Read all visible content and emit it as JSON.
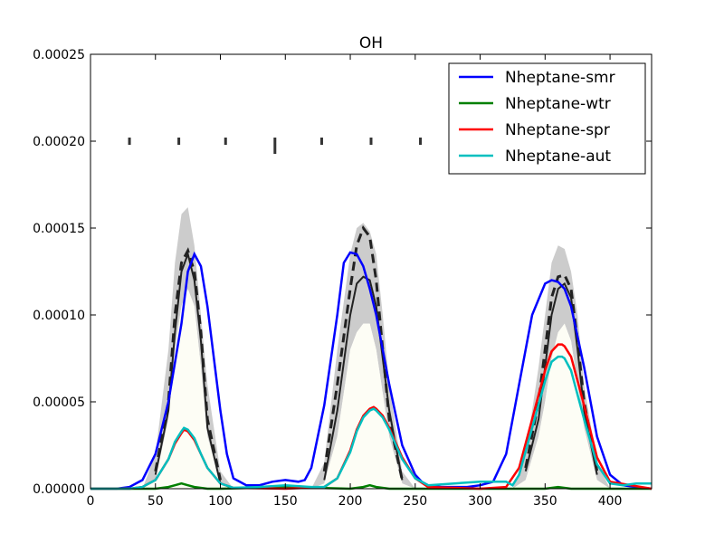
{
  "chart_data": {
    "type": "line",
    "title": "OH",
    "xlabel": "",
    "ylabel": "",
    "xlim": [
      0,
      432
    ],
    "ylim": [
      0,
      0.00025
    ],
    "x_ticks": [
      0,
      50,
      100,
      150,
      200,
      250,
      300,
      350,
      400
    ],
    "x_tick_labels": [
      "0",
      "50",
      "100",
      "150",
      "200",
      "250",
      "300",
      "350",
      "400"
    ],
    "y_ticks": [
      0,
      5e-05,
      0.0001,
      0.00015,
      0.0002,
      0.00025
    ],
    "y_tick_labels": [
      "0.00000",
      "0.00005",
      "0.00010",
      "0.00015",
      "0.00020",
      "0.00025"
    ],
    "grid": false,
    "legend_position": "top-right",
    "series": [
      {
        "name": "Nheptane-smr",
        "color": "#0000ff",
        "x": [
          0,
          20,
          30,
          40,
          50,
          60,
          70,
          75,
          80,
          85,
          90,
          100,
          105,
          110,
          120,
          130,
          140,
          150,
          160,
          165,
          170,
          180,
          190,
          195,
          200,
          205,
          210,
          215,
          220,
          230,
          240,
          250,
          255,
          260,
          270,
          280,
          290,
          300,
          310,
          320,
          330,
          340,
          350,
          355,
          360,
          365,
          370,
          380,
          390,
          400,
          410,
          420,
          432
        ],
        "y": [
          0,
          0,
          1e-06,
          5e-06,
          2e-05,
          5e-05,
          9.5e-05,
          0.000125,
          0.000135,
          0.000128,
          0.000105,
          4.5e-05,
          2e-05,
          6e-06,
          2e-06,
          2e-06,
          4e-06,
          5e-06,
          4e-06,
          5e-06,
          1.2e-05,
          4.8e-05,
          0.0001,
          0.00013,
          0.000136,
          0.000135,
          0.000128,
          0.000115,
          0.0001,
          6e-05,
          2.5e-05,
          8e-06,
          4e-06,
          2e-06,
          1e-06,
          1e-06,
          1e-06,
          2e-06,
          4e-06,
          2e-05,
          6e-05,
          0.0001,
          0.000118,
          0.00012,
          0.000119,
          0.000115,
          0.000105,
          7e-05,
          3e-05,
          8e-06,
          2e-06,
          1e-06,
          0
        ]
      },
      {
        "name": "Nheptane-wtr",
        "color": "#008000",
        "x": [
          0,
          50,
          60,
          65,
          70,
          75,
          80,
          90,
          100,
          150,
          200,
          210,
          215,
          220,
          230,
          240,
          300,
          350,
          360,
          370,
          380,
          432
        ],
        "y": [
          0,
          0,
          1e-06,
          2e-06,
          3e-06,
          2e-06,
          1e-06,
          0,
          0,
          1e-06,
          0,
          1e-06,
          2e-06,
          1e-06,
          0,
          0,
          0,
          0,
          1e-06,
          0,
          0,
          0
        ]
      },
      {
        "name": "Nheptane-spr",
        "color": "#ff0000",
        "x": [
          0,
          30,
          40,
          50,
          60,
          65,
          70,
          72,
          75,
          80,
          85,
          90,
          100,
          110,
          150,
          180,
          190,
          200,
          205,
          210,
          215,
          218,
          220,
          225,
          230,
          240,
          250,
          260,
          300,
          320,
          330,
          340,
          350,
          355,
          360,
          363,
          365,
          370,
          380,
          390,
          400,
          432
        ],
        "y": [
          0,
          0,
          1e-06,
          5e-06,
          1.7e-05,
          2.6e-05,
          3.2e-05,
          3.4e-05,
          3.3e-05,
          2.8e-05,
          2e-05,
          1.2e-05,
          3e-06,
          5e-07,
          0,
          1e-06,
          6e-06,
          2.2e-05,
          3.4e-05,
          4.2e-05,
          4.6e-05,
          4.7e-05,
          4.6e-05,
          4.2e-05,
          3.5e-05,
          1.8e-05,
          6e-06,
          1e-06,
          0,
          1e-06,
          1.2e-05,
          4e-05,
          6.8e-05,
          7.9e-05,
          8.3e-05,
          8.3e-05,
          8.2e-05,
          7.6e-05,
          4.8e-05,
          1.8e-05,
          4e-06,
          0
        ]
      },
      {
        "name": "Nheptane-aut",
        "color": "#00bfbf",
        "x": [
          0,
          30,
          40,
          50,
          60,
          65,
          70,
          72,
          75,
          80,
          85,
          90,
          100,
          110,
          130,
          150,
          170,
          180,
          190,
          200,
          205,
          210,
          215,
          218,
          220,
          225,
          230,
          240,
          250,
          260,
          280,
          300,
          320,
          325,
          330,
          340,
          350,
          355,
          360,
          363,
          365,
          370,
          380,
          390,
          400,
          410,
          420,
          432
        ],
        "y": [
          0,
          0,
          1e-06,
          5e-06,
          1.7e-05,
          2.7e-05,
          3.3e-05,
          3.5e-05,
          3.4e-05,
          2.9e-05,
          2e-05,
          1.2e-05,
          3e-06,
          5e-07,
          1e-06,
          2e-06,
          1e-06,
          1e-06,
          6e-06,
          2.1e-05,
          3.3e-05,
          4.1e-05,
          4.5e-05,
          4.6e-05,
          4.5e-05,
          4.1e-05,
          3.4e-05,
          1.7e-05,
          6e-06,
          2e-06,
          3e-06,
          4e-06,
          4e-06,
          2e-06,
          8e-06,
          3.5e-05,
          6.2e-05,
          7.3e-05,
          7.6e-05,
          7.6e-05,
          7.5e-05,
          6.8e-05,
          4e-05,
          1.4e-05,
          3e-06,
          2e-06,
          3e-06,
          3e-06
        ]
      }
    ],
    "observations": [
      {
        "style": "dashed",
        "x": [
          50,
          60,
          65,
          70,
          75,
          80,
          85,
          90,
          100
        ],
        "y": [
          1e-05,
          5e-05,
          0.0001,
          0.00013,
          0.000137,
          0.000125,
          9e-05,
          4e-05,
          5e-06
        ]
      },
      {
        "style": "solid",
        "x": [
          50,
          60,
          65,
          70,
          75,
          80,
          85,
          90,
          100
        ],
        "y": [
          8e-06,
          4.5e-05,
          9e-05,
          0.000125,
          0.000135,
          0.00012,
          8.5e-05,
          3.5e-05,
          3e-06
        ]
      },
      {
        "style": "dashed",
        "x": [
          180,
          190,
          200,
          205,
          210,
          215,
          220,
          225,
          230,
          240
        ],
        "y": [
          1e-05,
          6e-05,
          0.000115,
          0.00014,
          0.00015,
          0.000145,
          0.00012,
          8e-05,
          4e-05,
          5e-06
        ]
      },
      {
        "style": "solid",
        "x": [
          180,
          190,
          200,
          205,
          210,
          215,
          220,
          225,
          230,
          240
        ],
        "y": [
          5e-06,
          4.5e-05,
          0.0001,
          0.000118,
          0.000122,
          0.00012,
          0.000105,
          7.5e-05,
          4.5e-05,
          5e-06
        ]
      },
      {
        "style": "dashed",
        "x": [
          335,
          345,
          350,
          355,
          360,
          365,
          370,
          375,
          380,
          390
        ],
        "y": [
          1.2e-05,
          5e-05,
          8e-05,
          0.00011,
          0.000122,
          0.000123,
          0.000115,
          8.5e-05,
          5e-05,
          1e-05
        ]
      },
      {
        "style": "solid",
        "x": [
          335,
          345,
          350,
          355,
          360,
          365,
          370,
          375,
          380,
          390
        ],
        "y": [
          1e-05,
          4e-05,
          7e-05,
          0.0001,
          0.000115,
          0.000118,
          0.00011,
          8e-05,
          4.5e-05,
          8e-06
        ]
      }
    ],
    "observation_bands": [
      {
        "x": [
          40,
          50,
          60,
          65,
          70,
          75,
          80,
          85,
          90,
          100,
          110
        ],
        "lower": [
          0,
          5e-06,
          4e-05,
          8e-05,
          0.000105,
          0.000115,
          0.000105,
          7e-05,
          3e-05,
          3e-06,
          0
        ],
        "upper": [
          0,
          2e-05,
          8e-05,
          0.00013,
          0.000158,
          0.000162,
          0.00014,
          0.0001,
          6e-05,
          1e-05,
          0
        ]
      },
      {
        "x": [
          170,
          180,
          190,
          200,
          205,
          210,
          215,
          220,
          225,
          230,
          240,
          250
        ],
        "lower": [
          0,
          3e-06,
          3e-05,
          8e-05,
          9e-05,
          9.5e-05,
          9.5e-05,
          8e-05,
          5.5e-05,
          3e-05,
          3e-06,
          0
        ],
        "upper": [
          0,
          1.5e-05,
          8e-05,
          0.000135,
          0.00015,
          0.000153,
          0.000148,
          0.000135,
          0.0001,
          6e-05,
          1e-05,
          0
        ]
      },
      {
        "x": [
          325,
          335,
          345,
          350,
          355,
          360,
          365,
          370,
          375,
          380,
          390,
          400
        ],
        "lower": [
          0,
          5e-06,
          3e-05,
          5e-05,
          7.5e-05,
          9e-05,
          9.5e-05,
          8.5e-05,
          6e-05,
          3.5e-05,
          5e-06,
          0
        ],
        "upper": [
          0,
          2e-05,
          7e-05,
          0.0001,
          0.00013,
          0.00014,
          0.000138,
          0.000125,
          0.0001,
          6e-05,
          1.5e-05,
          0
        ]
      }
    ],
    "observation_markers": {
      "top_row_x": [
        30,
        68,
        104,
        142,
        178,
        216,
        254
      ],
      "top_row_y": 0.0002
    }
  }
}
